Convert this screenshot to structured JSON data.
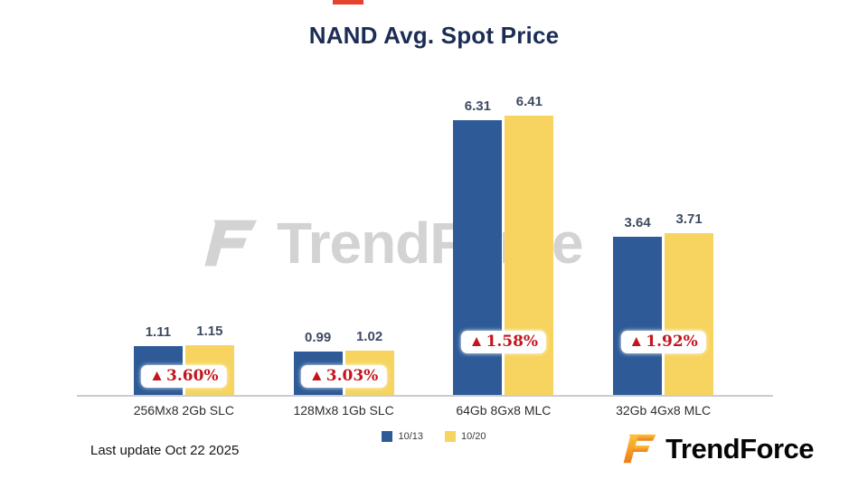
{
  "page": {
    "last_update": "Last update Oct 22  2025"
  },
  "brand": {
    "name": "TrendForce",
    "watermark": "TrendForce"
  },
  "colors": {
    "brand_gradient_top": "#fbc53c",
    "brand_gradient_bottom": "#ee7b17",
    "title": "#1c2d55",
    "change": "#c2161e"
  },
  "chart_data": {
    "type": "bar",
    "title": "NAND Avg. Spot Price",
    "categories": [
      "256Mx8 2Gb SLC",
      "128Mx8 1Gb SLC",
      "64Gb 8Gx8 MLC",
      "32Gb 4Gx8 MLC"
    ],
    "series": [
      {
        "name": "10/13",
        "color": "#2e5b97",
        "values": [
          1.11,
          0.99,
          6.31,
          3.64
        ]
      },
      {
        "name": "10/20",
        "color": "#f6d45f",
        "values": [
          1.15,
          1.02,
          6.41,
          3.71
        ]
      }
    ],
    "change_symbol": "▲",
    "changes": [
      "3.60%",
      "3.03%",
      "1.58%",
      "1.92%"
    ],
    "change_color": "#c2161e",
    "ylim": [
      0,
      7
    ],
    "grid": false,
    "legend_position": "bottom"
  }
}
